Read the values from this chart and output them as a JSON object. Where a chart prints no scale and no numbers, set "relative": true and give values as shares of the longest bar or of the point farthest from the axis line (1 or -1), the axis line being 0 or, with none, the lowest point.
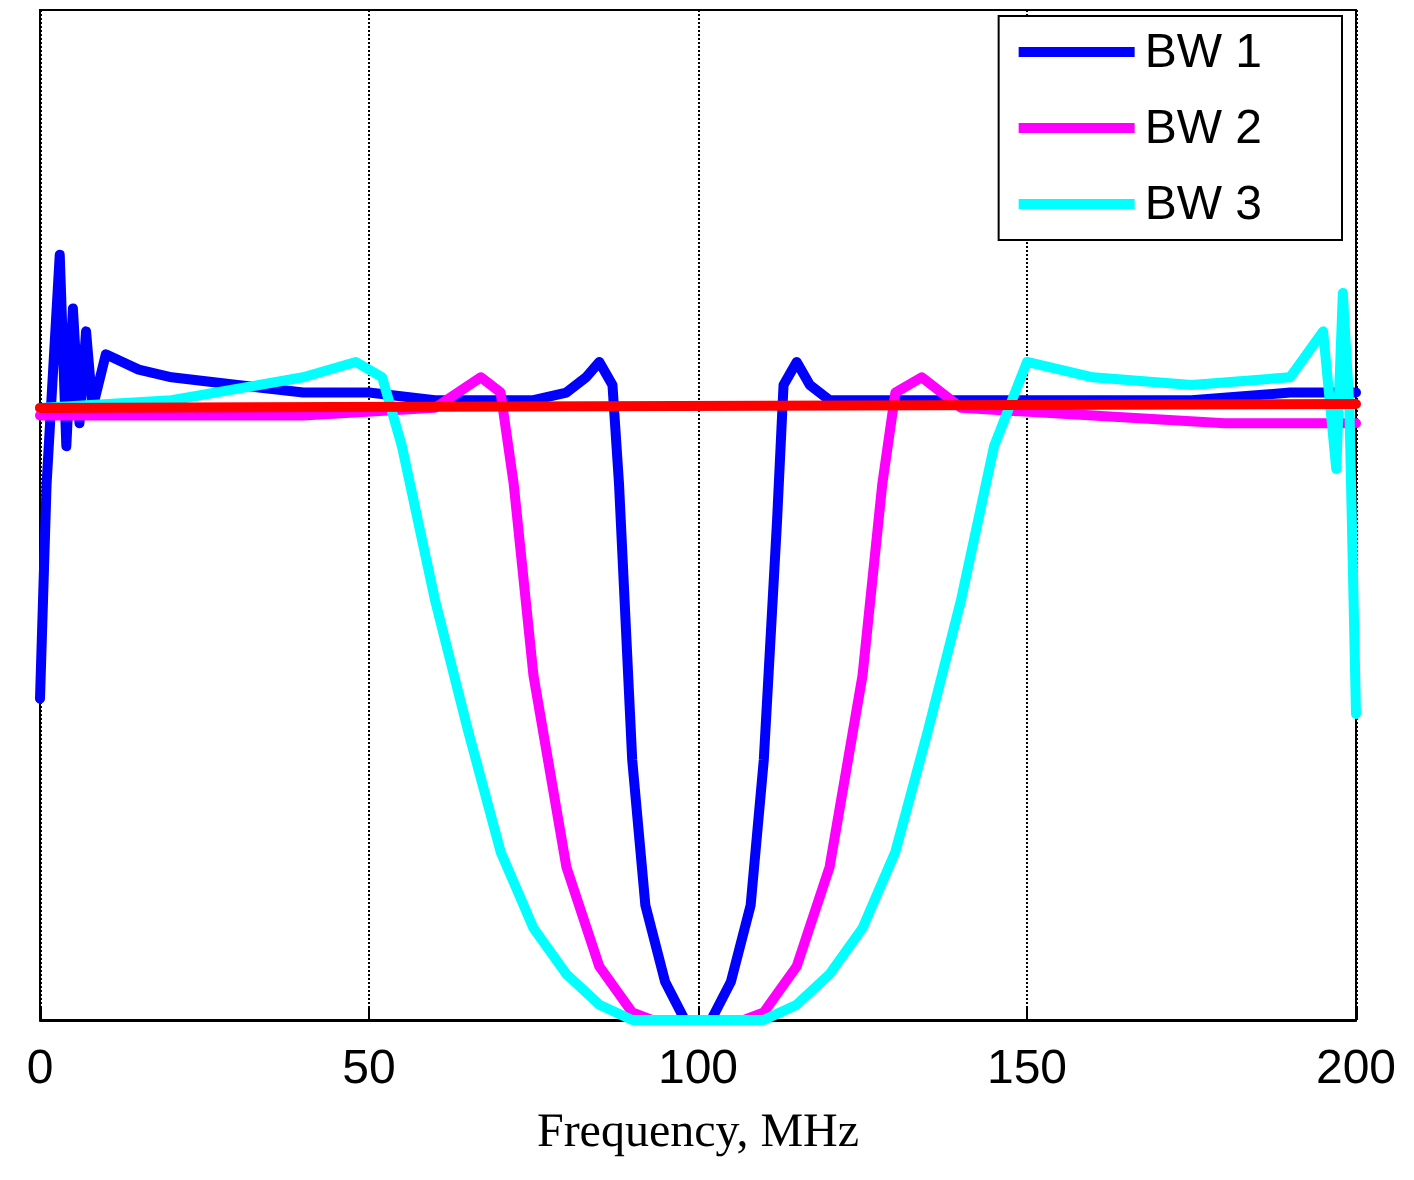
{
  "chart_data": {
    "type": "line",
    "xlabel": "Frequency, MHz",
    "relative": true,
    "xlim": [
      0,
      200
    ],
    "xticks": [
      0,
      50,
      100,
      150,
      200
    ],
    "grid": "x",
    "legend": "top right",
    "line_style": "solid",
    "marker": "none",
    "series": [
      {
        "name": "BW 1",
        "color": "#0000ff",
        "x": [
          0,
          1,
          3,
          4,
          5,
          6,
          7,
          8,
          10,
          15,
          20,
          30,
          40,
          50,
          60,
          70,
          75,
          80,
          83,
          85,
          87,
          88,
          90,
          92,
          95,
          98,
          100,
          102,
          105,
          108,
          110,
          112,
          113,
          115,
          117,
          120,
          125,
          150,
          175,
          190,
          195,
          198,
          200
        ],
        "values": [
          0.42,
          0.7,
          1.0,
          0.75,
          0.93,
          0.78,
          0.9,
          0.8,
          0.87,
          0.85,
          0.84,
          0.83,
          0.82,
          0.82,
          0.81,
          0.81,
          0.81,
          0.82,
          0.84,
          0.86,
          0.83,
          0.7,
          0.34,
          0.15,
          0.05,
          0,
          0,
          0,
          0.05,
          0.15,
          0.34,
          0.65,
          0.83,
          0.86,
          0.83,
          0.81,
          0.81,
          0.81,
          0.81,
          0.82,
          0.82,
          0.82,
          0.82
        ]
      },
      {
        "name": "BW 2",
        "color": "#ff00ff",
        "x": [
          0,
          20,
          40,
          60,
          67,
          70,
          72,
          75,
          80,
          85,
          90,
          93,
          100,
          107,
          110,
          115,
          120,
          125,
          128,
          130,
          134,
          140,
          160,
          180,
          200
        ],
        "values": [
          0.79,
          0.79,
          0.79,
          0.8,
          0.84,
          0.82,
          0.7,
          0.45,
          0.2,
          0.07,
          0.01,
          0,
          0,
          0,
          0.01,
          0.07,
          0.2,
          0.45,
          0.7,
          0.82,
          0.84,
          0.8,
          0.79,
          0.78,
          0.78
        ]
      },
      {
        "name": "BW 3",
        "color": "#00ffff",
        "x": [
          0,
          20,
          40,
          48,
          52,
          55,
          60,
          65,
          70,
          75,
          80,
          85,
          90,
          100,
          110,
          115,
          120,
          125,
          130,
          135,
          140,
          145,
          150,
          160,
          175,
          190,
          195,
          197,
          198,
          199,
          200
        ],
        "values": [
          0.8,
          0.81,
          0.84,
          0.86,
          0.84,
          0.75,
          0.55,
          0.38,
          0.22,
          0.12,
          0.06,
          0.02,
          0,
          0,
          0,
          0.02,
          0.06,
          0.12,
          0.22,
          0.38,
          0.55,
          0.75,
          0.86,
          0.84,
          0.83,
          0.84,
          0.9,
          0.72,
          0.95,
          0.8,
          0.4
        ]
      },
      {
        "color": "#ff0000",
        "x": [
          0,
          200
        ],
        "values": [
          0.8,
          0.805
        ]
      }
    ]
  }
}
